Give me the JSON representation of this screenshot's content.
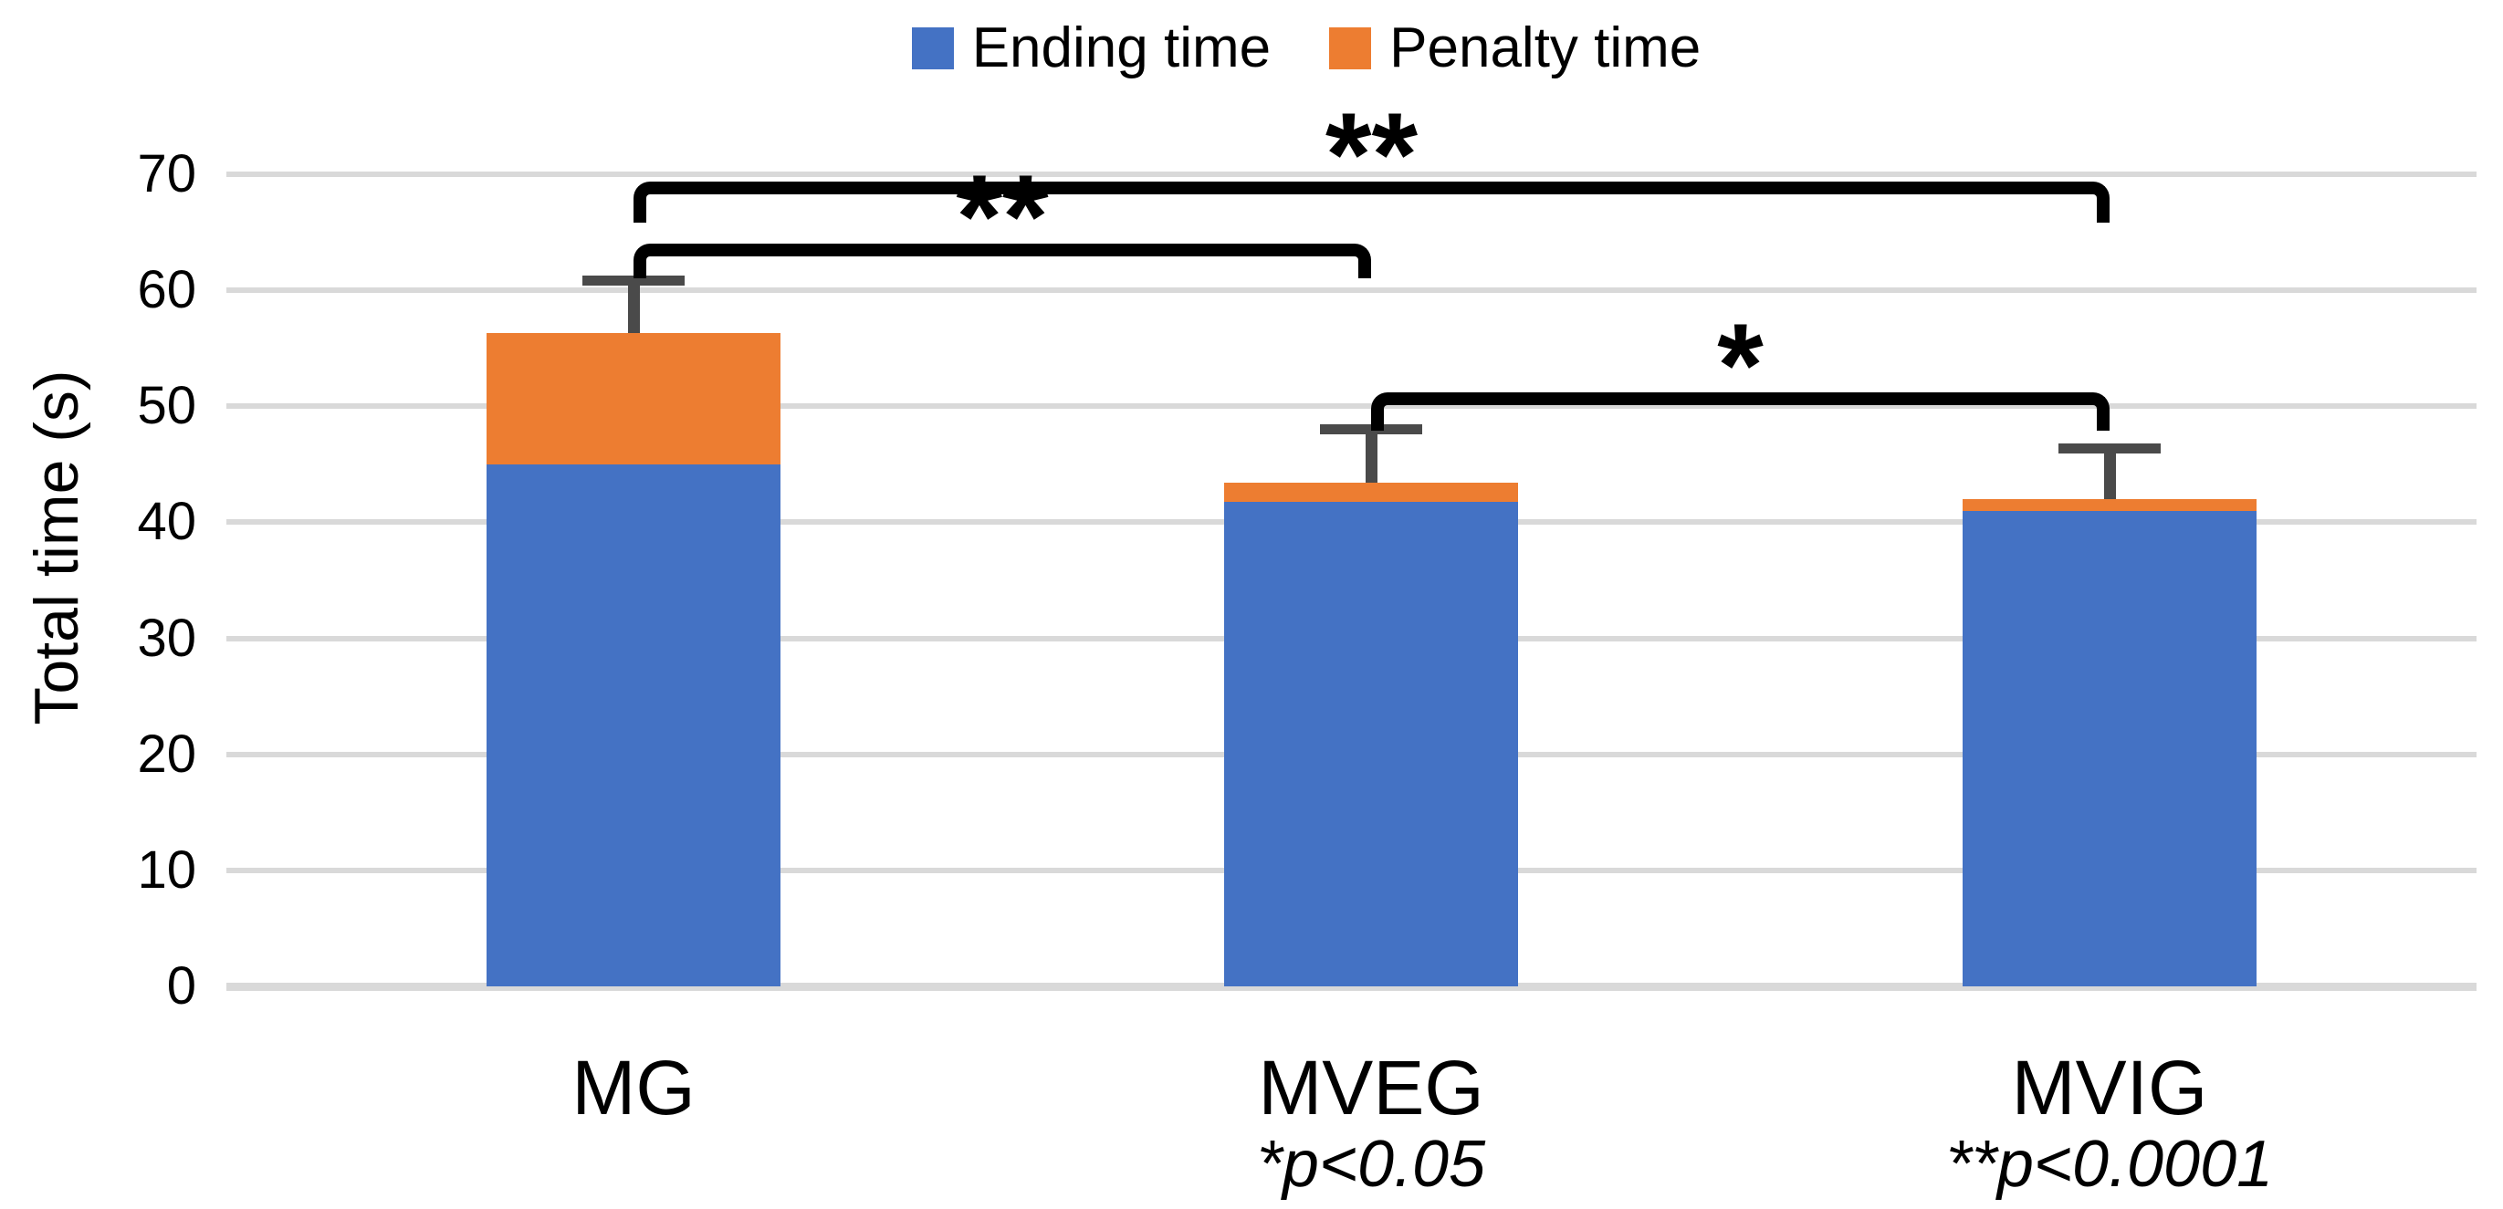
{
  "chart_data": {
    "type": "bar",
    "stacked": true,
    "categories": [
      "MG",
      "MVEG",
      "MVIG"
    ],
    "category_footnotes": [
      "",
      "*p<0.05",
      "**p<0.0001"
    ],
    "series": [
      {
        "name": "Ending time",
        "color": "#4472C4",
        "values": [
          45.0,
          41.8,
          41.0
        ]
      },
      {
        "name": "Penalty time",
        "color": "#ED7D31",
        "values": [
          11.3,
          1.6,
          1.0
        ]
      }
    ],
    "stack_totals": [
      56.3,
      43.4,
      42.0
    ],
    "error_bar_tops": [
      60.8,
      48.0,
      46.4
    ],
    "ylabel": "Total time (s)",
    "xlabel": "",
    "ylim": [
      0,
      70
    ],
    "yticks": [
      0,
      10,
      20,
      30,
      40,
      50,
      60,
      70
    ],
    "grid": "horizontal",
    "legend_position": "top",
    "significance_brackets": [
      {
        "from": "MG",
        "to": "MVIG",
        "label": "**",
        "height": 69.4
      },
      {
        "from": "MG",
        "to": "MVEG",
        "label": "**",
        "height": 64.0
      },
      {
        "from": "MVEG",
        "to": "MVIG",
        "label": "*",
        "height": 51.2
      }
    ],
    "colors": {
      "ending_time": "#4472C4",
      "penalty_time": "#ED7D31",
      "gridline": "#D9D9D9",
      "error_bar": "#4a4a4a",
      "bracket": "#000000"
    }
  }
}
